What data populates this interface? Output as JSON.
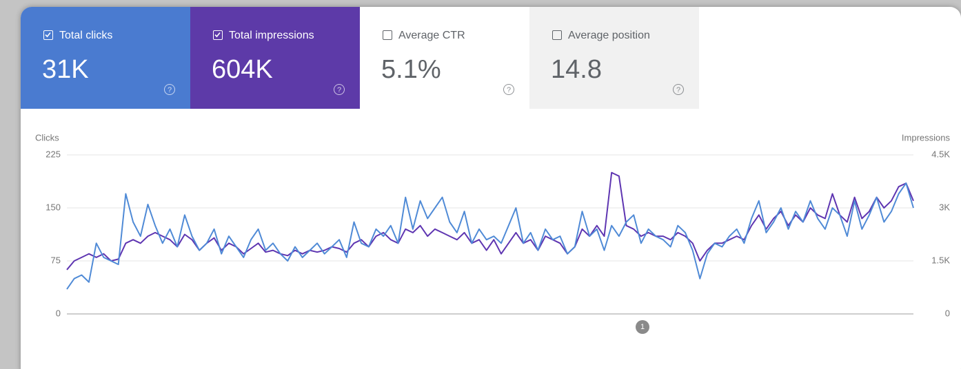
{
  "metrics": [
    {
      "label": "Total clicks",
      "value": "31K",
      "checked": true,
      "background": "#4a7bd0",
      "text_color": "#ffffff"
    },
    {
      "label": "Total impressions",
      "value": "604K",
      "checked": true,
      "background": "#5d3aa8",
      "text_color": "#ffffff"
    },
    {
      "label": "Average CTR",
      "value": "5.1%",
      "checked": false,
      "background": "#ffffff",
      "text_color": "#5f6368"
    },
    {
      "label": "Average position",
      "value": "14.8",
      "checked": false,
      "background": "#f1f1f1",
      "text_color": "#5f6368"
    }
  ],
  "chart_data": {
    "type": "line",
    "ylim": [
      0,
      225
    ],
    "yticks": [
      0,
      75,
      150,
      225
    ],
    "y2lim": [
      0,
      4500
    ],
    "y2ticks": [
      {
        "value": 0,
        "label": "0"
      },
      {
        "value": 1500,
        "label": "1.5K"
      },
      {
        "value": 3000,
        "label": "3K"
      },
      {
        "value": 4500,
        "label": "4.5K"
      }
    ],
    "grid": true,
    "series": [
      {
        "name": "Clicks",
        "color": "#4f8ad6",
        "values": [
          35,
          50,
          55,
          45,
          100,
          80,
          75,
          70,
          170,
          130,
          110,
          155,
          125,
          100,
          120,
          95,
          140,
          110,
          90,
          100,
          120,
          85,
          110,
          95,
          80,
          105,
          120,
          90,
          100,
          85,
          75,
          95,
          80,
          90,
          100,
          85,
          95,
          105,
          80,
          130,
          100,
          95,
          120,
          110,
          125,
          100,
          165,
          120,
          160,
          135,
          150,
          165,
          130,
          115,
          145,
          100,
          120,
          105,
          110,
          100,
          125,
          150,
          100,
          115,
          90,
          120,
          105,
          110,
          85,
          95,
          145,
          110,
          120,
          90,
          125,
          110,
          130,
          140,
          100,
          120,
          110,
          105,
          95,
          125,
          115,
          90,
          50,
          85,
          100,
          95,
          110,
          120,
          100,
          135,
          160,
          115,
          130,
          150,
          120,
          145,
          130,
          160,
          135,
          120,
          150,
          140,
          110,
          160,
          120,
          140,
          165,
          130,
          145,
          170,
          185,
          150
        ]
      },
      {
        "name": "Impressions",
        "color": "#5e35b1",
        "axis": "y2",
        "values": [
          1250,
          1500,
          1600,
          1700,
          1600,
          1700,
          1500,
          1550,
          2000,
          2100,
          2000,
          2200,
          2300,
          2200,
          2100,
          1900,
          2250,
          2100,
          1800,
          2000,
          2150,
          1800,
          2000,
          1900,
          1700,
          1850,
          2000,
          1750,
          1800,
          1700,
          1650,
          1800,
          1700,
          1800,
          1750,
          1800,
          1900,
          1850,
          1750,
          2000,
          2100,
          1900,
          2200,
          2300,
          2100,
          2000,
          2400,
          2300,
          2500,
          2200,
          2400,
          2300,
          2200,
          2100,
          2300,
          2000,
          2100,
          1800,
          2100,
          1700,
          2000,
          2300,
          2000,
          2100,
          1800,
          2200,
          2100,
          2000,
          1700,
          1900,
          2400,
          2200,
          2500,
          2200,
          4000,
          3900,
          2500,
          2400,
          2200,
          2300,
          2200,
          2200,
          2100,
          2300,
          2200,
          2000,
          1500,
          1800,
          2000,
          2000,
          2100,
          2200,
          2100,
          2500,
          2800,
          2400,
          2700,
          2900,
          2500,
          2800,
          2600,
          3000,
          2800,
          2700,
          3400,
          2800,
          2600,
          3300,
          2700,
          2900,
          3300,
          3000,
          3200,
          3600,
          3700,
          3200
        ]
      }
    ],
    "annotations": [
      {
        "text": "1"
      }
    ]
  }
}
